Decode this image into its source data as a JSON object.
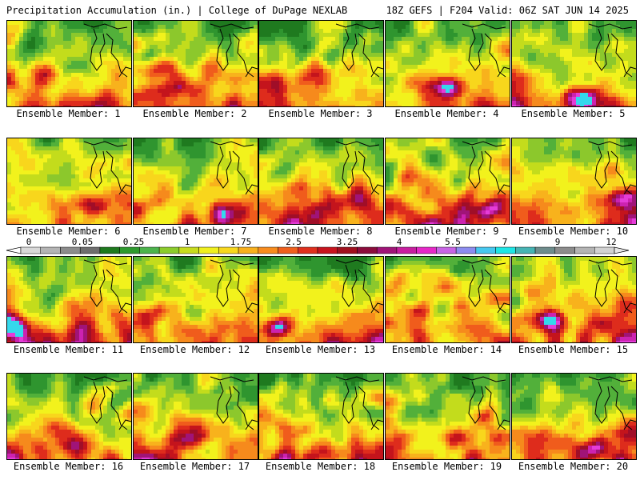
{
  "header": {
    "title_left": "Precipitation Accumulation (in.) | College of DuPage NEXLAB",
    "title_right": "18Z GEFS | F204 Valid: 06Z SAT JUN 14 2025"
  },
  "members": [
    {
      "label": "Ensemble Member: 1",
      "seed": 11
    },
    {
      "label": "Ensemble Member: 2",
      "seed": 22
    },
    {
      "label": "Ensemble Member: 3",
      "seed": 33
    },
    {
      "label": "Ensemble Member: 4",
      "seed": 44
    },
    {
      "label": "Ensemble Member: 5",
      "seed": 55
    },
    {
      "label": "Ensemble Member: 6",
      "seed": 66
    },
    {
      "label": "Ensemble Member: 7",
      "seed": 77
    },
    {
      "label": "Ensemble Member: 8",
      "seed": 88
    },
    {
      "label": "Ensemble Member: 9",
      "seed": 99
    },
    {
      "label": "Ensemble Member: 10",
      "seed": 110
    },
    {
      "label": "Ensemble Member: 11",
      "seed": 121
    },
    {
      "label": "Ensemble Member: 12",
      "seed": 132
    },
    {
      "label": "Ensemble Member: 13",
      "seed": 143
    },
    {
      "label": "Ensemble Member: 14",
      "seed": 154
    },
    {
      "label": "Ensemble Member: 15",
      "seed": 165
    },
    {
      "label": "Ensemble Member: 16",
      "seed": 176
    },
    {
      "label": "Ensemble Member: 17",
      "seed": 187
    },
    {
      "label": "Ensemble Member: 18",
      "seed": 198
    },
    {
      "label": "Ensemble Member: 19",
      "seed": 209
    },
    {
      "label": "Ensemble Member: 20",
      "seed": 220
    }
  ],
  "legend": {
    "tick_labels": [
      "0",
      "0.05",
      "0.25",
      "1",
      "1.75",
      "2.5",
      "3.25",
      "4",
      "5.5",
      "7",
      "9",
      "12"
    ],
    "colors": [
      "#d8d8d8",
      "#b4b4b4",
      "#8c8c8c",
      "#6e6e6e",
      "#1e7a1e",
      "#2e9a2e",
      "#4cb44c",
      "#8ccc2c",
      "#c8dc1e",
      "#f0f01e",
      "#f8d81e",
      "#f8b01e",
      "#f88c1e",
      "#f0601e",
      "#e0301e",
      "#c8141e",
      "#a0101e",
      "#8c0c3c",
      "#a01478",
      "#c81ea0",
      "#e628c8",
      "#c864e6",
      "#8c8cf0",
      "#46c8f0",
      "#1ee6e6",
      "#46b4b4",
      "#6e8c8c",
      "#8c8c8c",
      "#b4b4b4",
      "#d2d2d2"
    ],
    "under_color": "#ffffff",
    "over_color": "#e6e6e6"
  }
}
